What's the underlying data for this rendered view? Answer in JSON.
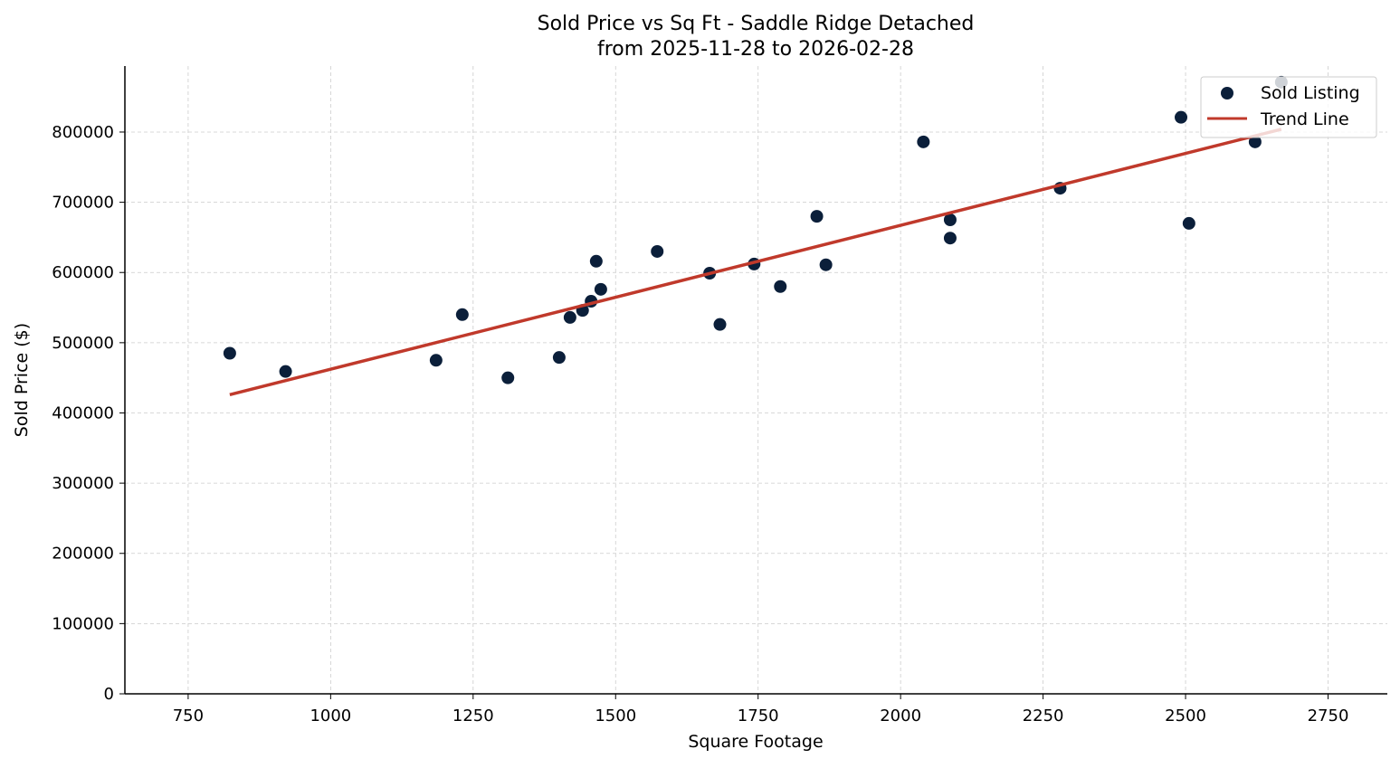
{
  "chart_data": {
    "type": "scatter",
    "title": "Sold Price vs Sq Ft - Saddle Ridge Detached",
    "subtitle": "from 2025-11-28 to 2026-02-28",
    "xlabel": "Square Footage",
    "ylabel": "Sold Price ($)",
    "xlim": [
      639,
      2854
    ],
    "ylim": [
      0,
      894000
    ],
    "xticks": [
      750,
      1000,
      1250,
      1500,
      1750,
      2000,
      2250,
      2500,
      2750
    ],
    "yticks": [
      0,
      100000,
      200000,
      300000,
      400000,
      500000,
      600000,
      700000,
      800000
    ],
    "grid": true,
    "legend_position": "top-right",
    "series": [
      {
        "name": "Sold Listing",
        "kind": "scatter",
        "color": "#0b1f3a",
        "points": [
          [
            823,
            485000
          ],
          [
            921,
            459000
          ],
          [
            1185,
            475000
          ],
          [
            1231,
            540000
          ],
          [
            1311,
            450000
          ],
          [
            1401,
            479000
          ],
          [
            1420,
            536000
          ],
          [
            1442,
            546000
          ],
          [
            1457,
            559000
          ],
          [
            1466,
            616000
          ],
          [
            1474,
            576000
          ],
          [
            1573,
            630000
          ],
          [
            1665,
            599000
          ],
          [
            1683,
            526000
          ],
          [
            1743,
            612000
          ],
          [
            1789,
            580000
          ],
          [
            1853,
            680000
          ],
          [
            1869,
            611000
          ],
          [
            2040,
            786000
          ],
          [
            2087,
            675000
          ],
          [
            2087,
            649000
          ],
          [
            2280,
            720000
          ],
          [
            2492,
            821000
          ],
          [
            2506,
            670000
          ],
          [
            2622,
            786000
          ],
          [
            2668,
            871000
          ]
        ]
      },
      {
        "name": "Trend Line",
        "kind": "line",
        "color": "#c0392b",
        "points": [
          [
            823,
            426000
          ],
          [
            2668,
            804000
          ]
        ]
      }
    ]
  }
}
